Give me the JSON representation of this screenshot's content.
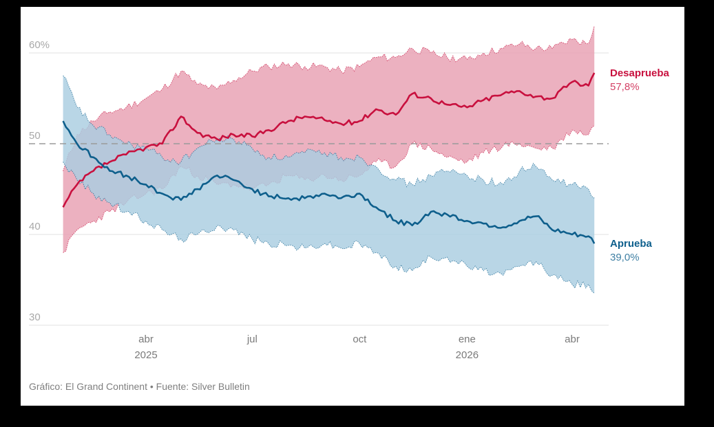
{
  "chart_data": {
    "type": "area",
    "title": "",
    "xlabel": "",
    "ylabel": "",
    "ylim": [
      30,
      62
    ],
    "y_ticks": [
      {
        "value": 60,
        "label": "60%"
      },
      {
        "value": 50,
        "label": "50"
      },
      {
        "value": 40,
        "label": "40"
      },
      {
        "value": 30,
        "label": "30"
      }
    ],
    "x_ticks": [
      {
        "date": "2025-04-01",
        "label": "abr",
        "sublabel": "2025"
      },
      {
        "date": "2025-07-01",
        "label": "jul",
        "sublabel": ""
      },
      {
        "date": "2025-10-01",
        "label": "oct",
        "sublabel": ""
      },
      {
        "date": "2026-01-01",
        "label": "ene",
        "sublabel": "2026"
      },
      {
        "date": "2026-04-01",
        "label": "abr",
        "sublabel": ""
      }
    ],
    "xlim": [
      "2025-01-20",
      "2026-04-20"
    ],
    "reference_line": {
      "value": 50,
      "style": "dashed"
    },
    "grid": true,
    "legend": "right-inline",
    "x": [
      "2025-01-20",
      "2025-02-01",
      "2025-02-15",
      "2025-03-01",
      "2025-03-15",
      "2025-04-01",
      "2025-04-15",
      "2025-05-01",
      "2025-05-15",
      "2025-06-01",
      "2025-06-15",
      "2025-07-01",
      "2025-07-15",
      "2025-08-01",
      "2025-08-15",
      "2025-09-01",
      "2025-09-15",
      "2025-10-01",
      "2025-10-15",
      "2025-11-01",
      "2025-11-15",
      "2025-12-01",
      "2025-12-15",
      "2026-01-01",
      "2026-01-15",
      "2026-02-01",
      "2026-02-15",
      "2026-03-01",
      "2026-03-15",
      "2026-04-01",
      "2026-04-15",
      "2026-04-20"
    ],
    "series": [
      {
        "name": "Desaprueba",
        "final_label": "57,8%",
        "color": "#c8103e",
        "band_color": "#e8a0b2",
        "values": [
          43.0,
          45.5,
          47.0,
          48.0,
          48.8,
          49.6,
          50.0,
          53.0,
          51.2,
          50.5,
          51.0,
          50.8,
          51.5,
          52.5,
          53.0,
          52.6,
          52.2,
          52.5,
          53.8,
          53.2,
          55.5,
          55.0,
          54.3,
          54.0,
          54.8,
          55.5,
          55.8,
          55.2,
          55.0,
          56.8,
          56.4,
          57.8
        ],
        "upper": [
          47.0,
          51.0,
          52.5,
          53.5,
          54.0,
          55.0,
          56.0,
          58.0,
          56.5,
          56.0,
          57.0,
          58.0,
          58.5,
          58.8,
          58.5,
          58.5,
          58.0,
          58.5,
          59.5,
          59.5,
          60.5,
          60.0,
          59.5,
          59.3,
          60.0,
          60.5,
          61.0,
          60.5,
          60.5,
          61.5,
          61.0,
          63.0
        ],
        "lower": [
          38.0,
          40.5,
          41.5,
          42.5,
          43.5,
          44.5,
          45.0,
          47.5,
          46.5,
          45.5,
          45.5,
          45.0,
          45.5,
          46.5,
          46.0,
          46.5,
          46.0,
          46.5,
          48.0,
          47.5,
          50.0,
          49.5,
          48.5,
          48.0,
          49.0,
          49.8,
          50.0,
          49.5,
          49.5,
          51.5,
          51.0,
          52.0
        ]
      },
      {
        "name": "Aprueba",
        "final_label": "39,0%",
        "color": "#0e5f8c",
        "band_color": "#a9cde0",
        "values": [
          52.5,
          50.0,
          48.5,
          47.0,
          46.5,
          45.5,
          44.5,
          43.8,
          45.0,
          46.5,
          46.0,
          45.0,
          44.2,
          44.0,
          44.0,
          44.5,
          44.0,
          44.5,
          43.0,
          41.5,
          41.0,
          42.5,
          42.2,
          41.5,
          41.2,
          40.8,
          41.5,
          42.0,
          40.5,
          40.0,
          39.8,
          39.0
        ],
        "upper": [
          57.5,
          54.0,
          52.0,
          51.0,
          50.0,
          49.5,
          48.5,
          48.0,
          49.5,
          50.5,
          50.5,
          49.5,
          48.5,
          48.5,
          49.0,
          49.0,
          48.5,
          48.5,
          47.5,
          46.0,
          45.5,
          46.5,
          47.0,
          46.5,
          46.0,
          45.5,
          47.0,
          47.5,
          46.0,
          45.5,
          45.0,
          44.0
        ],
        "lower": [
          48.0,
          46.0,
          44.5,
          43.5,
          42.5,
          41.5,
          40.5,
          39.5,
          40.0,
          41.0,
          40.5,
          39.5,
          39.0,
          38.8,
          38.5,
          39.0,
          38.5,
          39.0,
          38.0,
          36.5,
          36.0,
          37.5,
          37.5,
          36.5,
          36.0,
          35.5,
          36.5,
          37.0,
          35.5,
          34.5,
          34.5,
          33.5
        ]
      }
    ]
  },
  "footer": {
    "credit": "Gráfico: El Grand Continent • Fuente: Silver Bulletin"
  }
}
